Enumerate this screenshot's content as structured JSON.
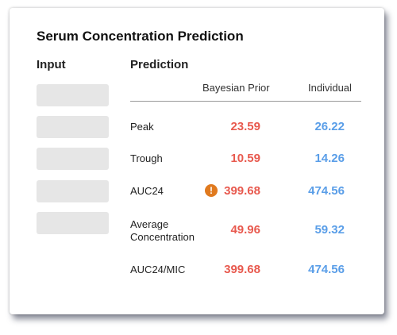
{
  "title": "Serum Concentration Prediction",
  "columns": {
    "input": "Input",
    "prediction": "Prediction"
  },
  "subheaders": {
    "prior": "Bayesian Prior",
    "individual": "Individual"
  },
  "colors": {
    "prior": "#e85a4f",
    "individual": "#5a9ee8",
    "warning": "#e07a1f"
  },
  "warning_icon": "exclamation-circle-icon",
  "rows": [
    {
      "label": "Peak",
      "prior": "23.59",
      "individual": "26.22"
    },
    {
      "label": "Trough",
      "prior": "10.59",
      "individual": "14.26"
    },
    {
      "label": "AUC24",
      "prior": "399.68",
      "individual": "474.56",
      "warning": "!"
    },
    {
      "label": "Average Concentration",
      "label_line1": "Average",
      "label_line2": "Concentration",
      "prior": "49.96",
      "individual": "59.32"
    },
    {
      "label": "AUC24/MIC",
      "prior": "399.68",
      "individual": "474.56"
    }
  ]
}
